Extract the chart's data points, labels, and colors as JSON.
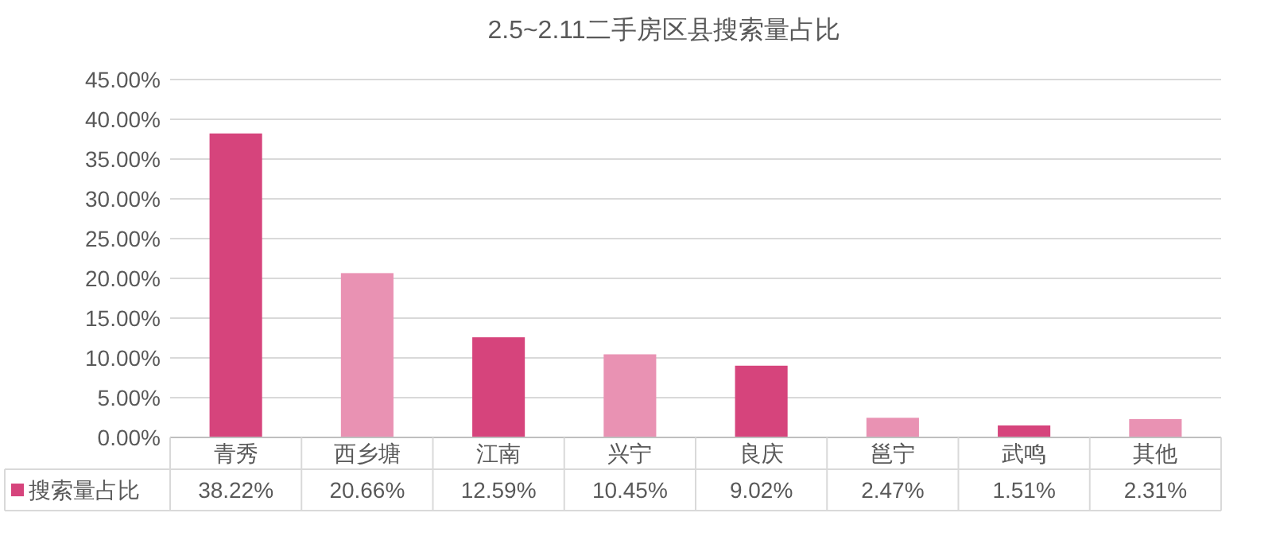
{
  "chart_data": {
    "type": "bar",
    "title": "2.5~2.11二手房区县搜索量占比",
    "categories": [
      "青秀",
      "西乡塘",
      "江南",
      "兴宁",
      "良庆",
      "邕宁",
      "武鸣",
      "其他"
    ],
    "series": [
      {
        "name": "搜索量占比",
        "color": "#d6447c",
        "colors": [
          "#d6447c",
          "#e992b3",
          "#d6447c",
          "#e992b3",
          "#d6447c",
          "#e992b3",
          "#d6447c",
          "#e992b3"
        ],
        "values": [
          38.22,
          20.66,
          12.59,
          10.45,
          9.02,
          2.47,
          1.51,
          2.31
        ],
        "value_labels": [
          "38.22%",
          "20.66%",
          "12.59%",
          "10.45%",
          "9.02%",
          "2.47%",
          "1.51%",
          "2.31%"
        ]
      }
    ],
    "ylim": [
      0,
      45
    ],
    "yticks": [
      {
        "value": 0,
        "label": "0.00%"
      },
      {
        "value": 5,
        "label": "5.00%"
      },
      {
        "value": 10,
        "label": "10.00%"
      },
      {
        "value": 15,
        "label": "15.00%"
      },
      {
        "value": 20,
        "label": "20.00%"
      },
      {
        "value": 25,
        "label": "25.00%"
      },
      {
        "value": 30,
        "label": "30.00%"
      },
      {
        "value": 35,
        "label": "35.00%"
      },
      {
        "value": 40,
        "label": "40.00%"
      },
      {
        "value": 45,
        "label": "45.00%"
      }
    ],
    "grid": "y",
    "legend": "bottom left"
  }
}
